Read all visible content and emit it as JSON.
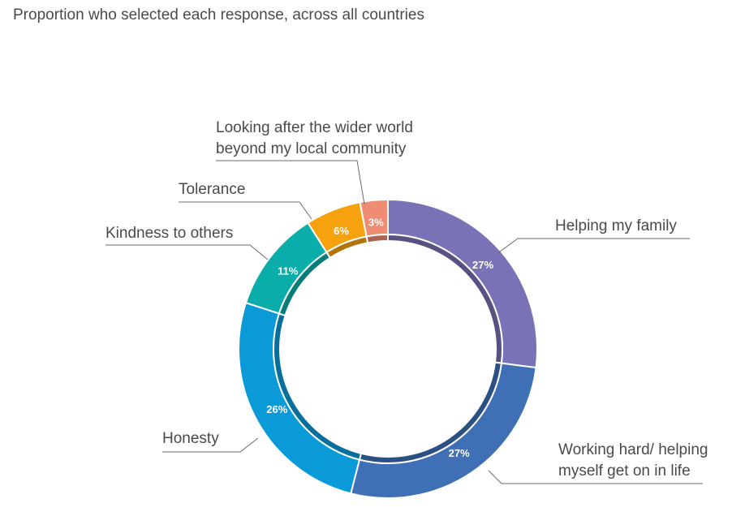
{
  "chart_data": {
    "type": "pie",
    "title": "Proportion who selected each response, across all countries",
    "slices": [
      {
        "label_lines": [
          "Helping my family"
        ],
        "value": 27,
        "value_label": "27%",
        "color": "#7a72b6"
      },
      {
        "label_lines": [
          "Working hard/ helping",
          "myself get on in life"
        ],
        "value": 27,
        "value_label": "27%",
        "color": "#3f6fb4"
      },
      {
        "label_lines": [
          "Honesty"
        ],
        "value": 26,
        "value_label": "26%",
        "color": "#0a9ad8"
      },
      {
        "label_lines": [
          "Kindness to others"
        ],
        "value": 11,
        "value_label": "11%",
        "color": "#0aada9"
      },
      {
        "label_lines": [
          "Tolerance"
        ],
        "value": 6,
        "value_label": "6%",
        "color": "#f6a20f"
      },
      {
        "label_lines": [
          "Looking after the wider world",
          "beyond my local community"
        ],
        "value": 3,
        "value_label": "3%",
        "color": "#ee8d73"
      }
    ]
  }
}
